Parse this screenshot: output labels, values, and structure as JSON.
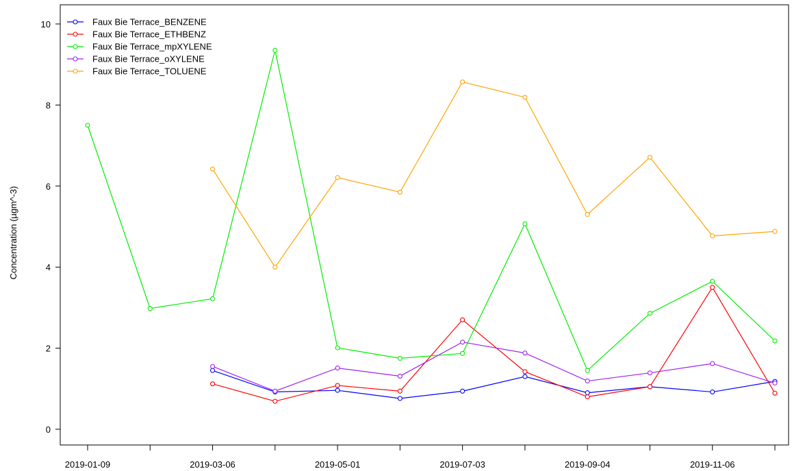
{
  "chart_data": {
    "type": "line",
    "title": "",
    "xlabel": "",
    "ylabel": "Concentration (µgm^-3)",
    "ylim": [
      0,
      10
    ],
    "yticks": [
      0,
      2,
      4,
      6,
      8,
      10
    ],
    "grid": false,
    "legend_position": "top-left",
    "x": [
      "2019-01-09",
      "2019-02-07",
      "2019-03-06",
      "2019-04-03",
      "2019-05-01",
      "2019-05-29",
      "2019-07-03",
      "2019-07-31",
      "2019-09-04",
      "2019-10-02",
      "2019-11-06",
      "2019-12-04"
    ],
    "x_tick_labels": [
      "2019-01-09",
      "",
      "2019-03-06",
      "",
      "2019-05-01",
      "",
      "2019-07-03",
      "",
      "2019-09-04",
      "",
      "2019-11-06",
      ""
    ],
    "series": [
      {
        "name": "Faux Bie Terrace_BENZENE",
        "color": "#0000ff",
        "values": [
          null,
          null,
          1.45,
          0.92,
          0.96,
          0.76,
          0.94,
          1.3,
          0.9,
          1.05,
          0.92,
          1.18
        ]
      },
      {
        "name": "Faux Bie Terrace_ETHBENZ",
        "color": "#ff0000",
        "values": [
          null,
          null,
          1.12,
          0.69,
          1.08,
          0.94,
          2.7,
          1.42,
          0.8,
          1.05,
          3.5,
          0.89
        ]
      },
      {
        "name": "Faux Bie Terrace_mpXYLENE",
        "color": "#00ee00",
        "values": [
          7.5,
          2.98,
          3.22,
          9.35,
          2.01,
          1.75,
          1.87,
          5.07,
          1.45,
          2.86,
          3.65,
          2.18
        ]
      },
      {
        "name": "Faux Bie Terrace_oXYLENE",
        "color": "#a020f0",
        "values": [
          null,
          null,
          1.55,
          0.94,
          1.51,
          1.31,
          2.15,
          1.88,
          1.19,
          1.39,
          1.62,
          1.14
        ]
      },
      {
        "name": "Faux Bie Terrace_TOLUENE",
        "color": "#ffa500",
        "values": [
          null,
          null,
          6.42,
          4.0,
          6.21,
          5.85,
          8.57,
          8.19,
          5.3,
          6.71,
          4.77,
          4.88
        ]
      }
    ]
  }
}
